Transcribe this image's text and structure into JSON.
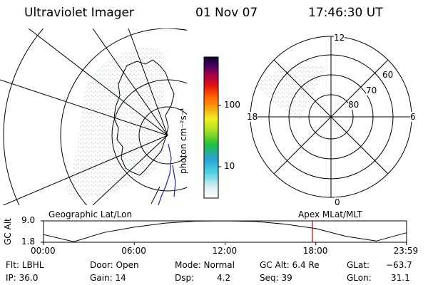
{
  "header": {
    "instrument": "Ultraviolet Imager",
    "date": "01 Nov 07",
    "time": "17:46:30 UT"
  },
  "colorbar": {
    "unit_label": "photon cm⁻²s⁻¹",
    "ticks": [
      "100",
      "10"
    ]
  },
  "polar_plot": {
    "mlt_labels": {
      "top": "12",
      "left": "18",
      "right": "6",
      "bottom": "0"
    },
    "lat_labels": [
      "60",
      "70",
      "80"
    ]
  },
  "panel_labels": {
    "left": "Geographic Lat/Lon",
    "right": "Apex MLat/MLT"
  },
  "chart_data": {
    "type": "line",
    "ylabel": "GC Alt",
    "yticks": [
      "9.0",
      "1.8"
    ],
    "ylim": [
      1.8,
      9.0
    ],
    "xticks": [
      "00:00",
      "06:00",
      "12:00",
      "18:00",
      "23:59"
    ],
    "x": [
      0,
      2,
      4,
      6,
      8,
      10,
      12,
      14,
      16,
      18,
      20,
      22,
      23.98
    ],
    "series": [
      {
        "values": [
          4.4,
          2.0,
          5.1,
          6.9,
          8.2,
          8.9,
          9.0,
          8.8,
          7.9,
          6.4,
          3.8,
          2.2,
          5.0
        ]
      }
    ],
    "marker_time": 17.775
  },
  "info": {
    "filter": "Flt: LBHL",
    "ip": "IP: 36.0",
    "door": "Door: Open",
    "gain": "Gain: 14",
    "mode": "Mode: Normal",
    "dsp_label": "Dsp:",
    "dsp_value": "4.2",
    "gc_alt": "GC Alt: 6.4 Re",
    "seq": "Seq: 39",
    "glat_label": "GLat:",
    "glat_value": "−63.7",
    "glon_label": "GLon:",
    "glon_value": "31.1"
  },
  "colors": {
    "ink": "#000000",
    "marker": "#cc0000",
    "coast": "#000000",
    "coast_highlight": "#1a2aa0",
    "speckle": "#cfe2dc"
  }
}
